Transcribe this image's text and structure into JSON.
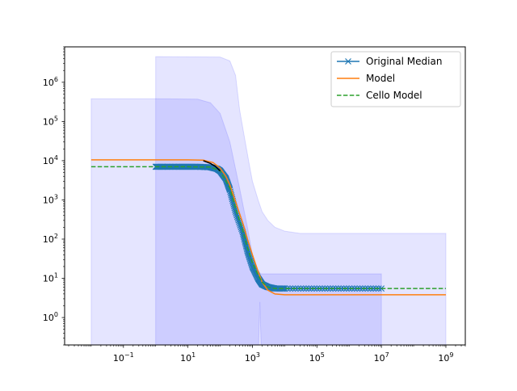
{
  "chart_data": {
    "type": "line",
    "xscale": "log",
    "yscale": "log",
    "xlim": [
      0.0015,
      4000000000.0
    ],
    "ylim": [
      0.2,
      8000000.0
    ],
    "xticks": [
      {
        "value": 0.1,
        "base": "10",
        "exp": "−1"
      },
      {
        "value": 10,
        "base": "10",
        "exp": "1"
      },
      {
        "value": 1000,
        "base": "10",
        "exp": "3"
      },
      {
        "value": 100000,
        "base": "10",
        "exp": "5"
      },
      {
        "value": 10000000,
        "base": "10",
        "exp": "7"
      },
      {
        "value": 1000000000,
        "base": "10",
        "exp": "9"
      }
    ],
    "yticks": [
      {
        "value": 1,
        "base": "10",
        "exp": "0"
      },
      {
        "value": 10,
        "base": "10",
        "exp": "1"
      },
      {
        "value": 100,
        "base": "10",
        "exp": "2"
      },
      {
        "value": 1000,
        "base": "10",
        "exp": "3"
      },
      {
        "value": 10000,
        "base": "10",
        "exp": "4"
      },
      {
        "value": 100000,
        "base": "10",
        "exp": "5"
      },
      {
        "value": 1000000,
        "base": "10",
        "exp": "6"
      }
    ],
    "legend": {
      "position": "top-right",
      "entries": [
        {
          "label": "Original Median",
          "color": "#1f77b4",
          "style": "solid-x"
        },
        {
          "label": "Model",
          "color": "#ff7f0e",
          "style": "solid"
        },
        {
          "label": "Cello Model",
          "color": "#2ca02c",
          "style": "dashed"
        }
      ]
    },
    "bands": [
      {
        "name": "outer",
        "color": "#0000ff",
        "opacity": 0.1,
        "x": [
          1,
          100,
          200,
          300,
          400,
          600,
          800,
          1000,
          1500,
          2000,
          3000,
          5000,
          10000,
          30000,
          100000,
          1000000000
        ],
        "upper": [
          4500000,
          4400000,
          3500000,
          1500000,
          200000,
          30000,
          8000,
          3000,
          1000,
          500,
          300,
          200,
          160,
          140,
          140,
          140
        ],
        "lower": [
          0.2,
          0.2,
          0.2,
          0.2,
          0.2,
          0.2,
          0.2,
          0.2,
          0.2,
          0.2,
          0.2,
          0.2,
          0.2,
          0.2,
          0.2,
          0.2
        ]
      },
      {
        "name": "inner",
        "color": "#0000ff",
        "opacity": 0.1,
        "x": [
          0.01,
          1,
          20,
          50,
          100,
          200,
          400,
          700,
          1000,
          1500,
          1800,
          2000,
          3000,
          5000,
          10000000
        ],
        "upper": [
          380000,
          380000,
          370000,
          300000,
          160000,
          30000,
          2000,
          200,
          40,
          15,
          13,
          13,
          13,
          13,
          13
        ],
        "lower": [
          0.2,
          0.2,
          0.2,
          0.2,
          0.2,
          0.2,
          0.2,
          0.2,
          0.2,
          0.2,
          0.2,
          0.2,
          0.2,
          0.2,
          0.2
        ],
        "spike": {
          "x": 1700,
          "lower": 2.5
        }
      }
    ],
    "series": [
      {
        "name": "Original Median",
        "color": "#1f77b4",
        "marker": "x",
        "x": [
          1,
          2,
          5,
          10,
          20,
          50,
          80,
          100,
          150,
          200,
          300,
          500,
          700,
          1000,
          1500,
          2000,
          3000,
          5000,
          10000,
          100000,
          1000000,
          10000000
        ],
        "y": [
          7000,
          7000,
          7000,
          7000,
          7000,
          6800,
          6200,
          5500,
          3500,
          1800,
          500,
          150,
          50,
          20,
          10,
          7,
          6,
          5.5,
          5.5,
          5.5,
          5.5,
          5.5
        ]
      },
      {
        "name": "Model",
        "color": "#ff7f0e",
        "x": [
          0.01,
          1,
          10,
          30,
          60,
          100,
          150,
          200,
          300,
          500,
          700,
          1000,
          1500,
          2000,
          3000,
          5000,
          10000,
          100000,
          1000000000
        ],
        "y": [
          10500,
          10500,
          10500,
          10300,
          9000,
          6500,
          4000,
          2400,
          900,
          260,
          100,
          40,
          15,
          8,
          5,
          4,
          3.8,
          3.8,
          3.8
        ]
      },
      {
        "name": "Cello Model",
        "color": "#2ca02c",
        "dashed": true,
        "x": [
          0.01,
          1,
          10,
          50,
          100,
          200,
          300,
          500,
          700,
          1000,
          1500,
          2000,
          3000,
          5000,
          10000,
          1000000000
        ],
        "y": [
          7000,
          7000,
          7000,
          6900,
          5500,
          2000,
          600,
          170,
          60,
          25,
          12,
          8,
          6,
          5.5,
          5.5,
          5.5
        ]
      },
      {
        "name": "",
        "color": "#000000",
        "x": [
          30,
          50,
          70,
          100
        ],
        "y": [
          10000,
          8500,
          7200,
          5500
        ]
      }
    ],
    "grid": false
  }
}
